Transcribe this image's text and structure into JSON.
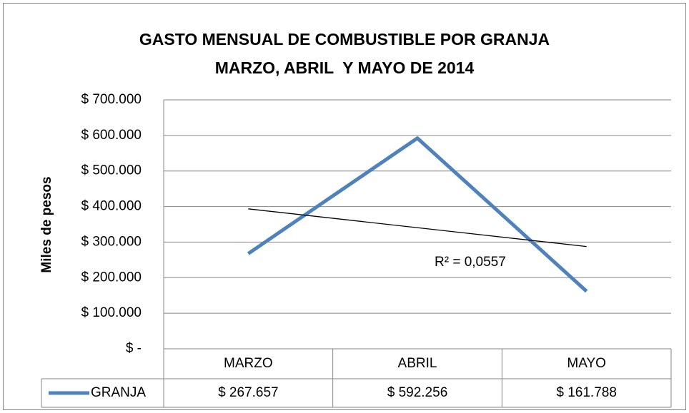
{
  "chart_data": {
    "type": "line",
    "title": [
      "GASTO MENSUAL DE COMBUSTIBLE POR GRANJA",
      "MARZO, ABRIL  Y MAYO DE 2014"
    ],
    "y_label": "Miles de pesos",
    "categories": [
      "MARZO",
      "ABRIL",
      "MAYO"
    ],
    "series": [
      {
        "name": "GRANJA",
        "color": "#4f81bd",
        "values": [
          267657,
          592256,
          161788
        ],
        "value_labels": [
          "$ 267.657",
          "$ 592.256",
          "$ 161.788"
        ]
      }
    ],
    "trendline": {
      "type": "linear",
      "annotation": "R² = 0,0557",
      "color": "#000000"
    },
    "ylim": [
      0,
      700000
    ],
    "yticks": [
      {
        "value": 0,
        "label": "$ -"
      },
      {
        "value": 100000,
        "label": "$ 100.000"
      },
      {
        "value": 200000,
        "label": "$ 200.000"
      },
      {
        "value": 300000,
        "label": "$ 300.000"
      },
      {
        "value": 400000,
        "label": "$ 400.000"
      },
      {
        "value": 500000,
        "label": "$ 500.000"
      },
      {
        "value": 600000,
        "label": "$ 600.000"
      },
      {
        "value": 700000,
        "label": "$ 700.000"
      }
    ],
    "grid": true,
    "data_table": true
  }
}
